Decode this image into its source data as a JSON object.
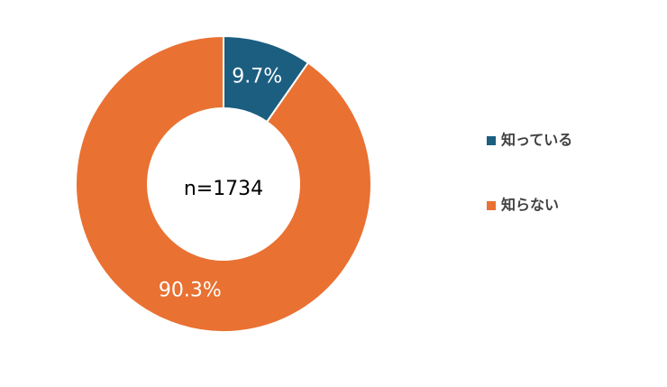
{
  "chart_data": {
    "type": "donut",
    "annotation": "n=1734",
    "categories": [
      "知っている",
      "知らない"
    ],
    "values": [
      9.7,
      90.3
    ],
    "value_labels": [
      "9.7%",
      "90.3%"
    ],
    "colors": [
      "#1b5e80",
      "#e97132"
    ],
    "legend": "right"
  }
}
